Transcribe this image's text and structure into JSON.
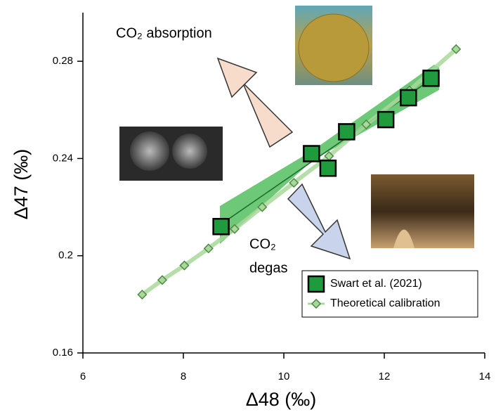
{
  "chart_data": {
    "type": "scatter",
    "x_label": "Δ48 (‰)",
    "y_label": "Δ47 (‰)",
    "xlim": [
      6,
      14
    ],
    "xticks": [
      6,
      8,
      10,
      12,
      14
    ],
    "ylim": [
      0.16,
      0.3
    ],
    "yticks": [
      0.16,
      0.2,
      0.24,
      0.28
    ],
    "annotations": {
      "absorption": "CO₂ absorption",
      "degas": [
        "CO₂",
        "degas"
      ]
    },
    "legend": "lower right",
    "series": [
      {
        "name": "Swart et al. (2021)",
        "color": "#1f9a3c",
        "marker": "square",
        "x": [
          8.75,
          10.55,
          10.88,
          11.25,
          12.03,
          12.48,
          12.93
        ],
        "values": [
          0.212,
          0.242,
          0.236,
          0.251,
          0.256,
          0.265,
          0.273
        ]
      },
      {
        "name": "Theoretical calibration",
        "color": "#a8d89a",
        "marker": "diamond",
        "x": [
          7.18,
          7.58,
          8.02,
          8.5,
          9.02,
          9.57,
          10.2,
          10.9,
          11.64,
          12.5,
          13.43
        ],
        "values": [
          0.184,
          0.19,
          0.196,
          0.203,
          0.211,
          0.22,
          0.23,
          0.241,
          0.254,
          0.268,
          0.285
        ]
      }
    ]
  }
}
